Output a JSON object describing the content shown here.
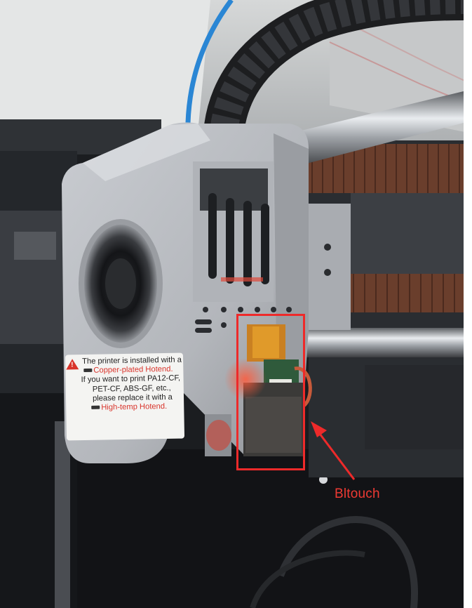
{
  "photo": {
    "subject": "3D printer print head close-up",
    "colors": {
      "housing": "#b9bcc1",
      "belt": "#6a3e2c",
      "filament": "#2a86d4",
      "annotation": "#ee2a2a"
    }
  },
  "sticker": {
    "line1": "The printer is installed with a",
    "line2_red": "Copper-plated Hotend.",
    "line3": "If you want to print PA12-CF,",
    "line4": "PET-CF, ABS-GF, etc.,",
    "line5": "please replace it with a",
    "line6_red": "High-temp Hotend."
  },
  "annotation": {
    "label": "Bltouch",
    "color": "#ee2a2a"
  }
}
